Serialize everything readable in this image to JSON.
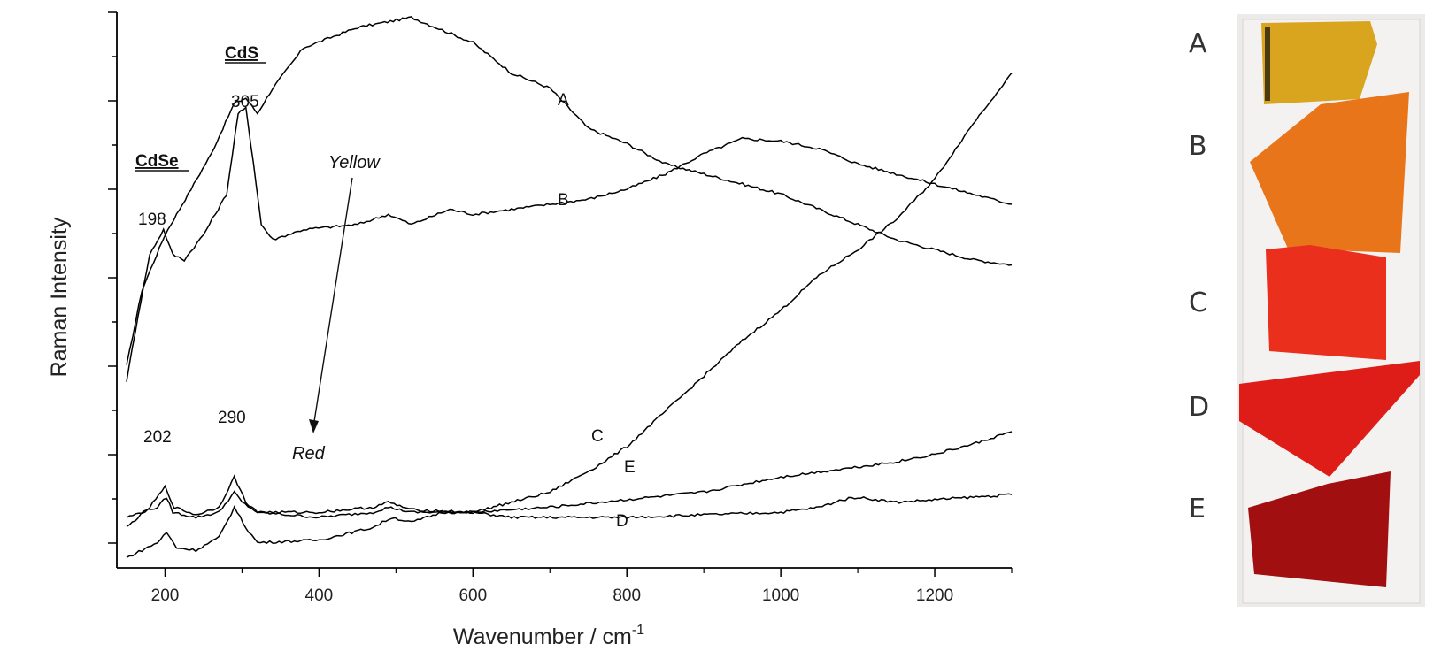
{
  "chart_data": {
    "type": "line",
    "xlabel": "Wavenumber / cm",
    "xlabel_sup": "-1",
    "ylabel": "Raman Intensity",
    "xlim": [
      150,
      1300
    ],
    "ylim": [
      0,
      110
    ],
    "x_ticks": [
      200,
      400,
      600,
      800,
      1000,
      1200
    ],
    "x_tick_labels": [
      "200",
      "400",
      "600",
      "800",
      "1000",
      "1200"
    ],
    "y_tick_labels_shown": false,
    "series": [
      {
        "name": "A",
        "color": "#000000",
        "points": [
          [
            150,
            40
          ],
          [
            170,
            55
          ],
          [
            200,
            66
          ],
          [
            230,
            74
          ],
          [
            260,
            82
          ],
          [
            290,
            92
          ],
          [
            305,
            93
          ],
          [
            320,
            90
          ],
          [
            340,
            95
          ],
          [
            380,
            103
          ],
          [
            450,
            107
          ],
          [
            520,
            109
          ],
          [
            600,
            104
          ],
          [
            650,
            98
          ],
          [
            700,
            95
          ],
          [
            750,
            87
          ],
          [
            800,
            84
          ],
          [
            850,
            80
          ],
          [
            900,
            78
          ],
          [
            950,
            76
          ],
          [
            1000,
            74
          ],
          [
            1050,
            71
          ],
          [
            1100,
            68
          ],
          [
            1150,
            65
          ],
          [
            1200,
            63
          ],
          [
            1250,
            61
          ],
          [
            1300,
            60
          ]
        ]
      },
      {
        "name": "B",
        "color": "#000000",
        "points": [
          [
            150,
            37
          ],
          [
            165,
            50
          ],
          [
            180,
            62
          ],
          [
            198,
            67
          ],
          [
            210,
            62
          ],
          [
            225,
            61
          ],
          [
            250,
            66
          ],
          [
            280,
            74
          ],
          [
            295,
            90
          ],
          [
            305,
            91
          ],
          [
            315,
            80
          ],
          [
            325,
            68
          ],
          [
            340,
            65
          ],
          [
            380,
            67
          ],
          [
            450,
            68
          ],
          [
            490,
            70
          ],
          [
            520,
            68
          ],
          [
            570,
            71
          ],
          [
            600,
            70
          ],
          [
            650,
            71
          ],
          [
            700,
            72
          ],
          [
            750,
            73
          ],
          [
            800,
            75
          ],
          [
            850,
            78
          ],
          [
            900,
            82
          ],
          [
            950,
            85
          ],
          [
            1000,
            84.5
          ],
          [
            1050,
            83
          ],
          [
            1100,
            80
          ],
          [
            1150,
            78
          ],
          [
            1200,
            76
          ],
          [
            1250,
            74
          ],
          [
            1300,
            72
          ]
        ]
      },
      {
        "name": "C",
        "color": "#000000",
        "points": [
          [
            150,
            10
          ],
          [
            190,
            12
          ],
          [
            202,
            14
          ],
          [
            210,
            11
          ],
          [
            240,
            10
          ],
          [
            270,
            11
          ],
          [
            290,
            15
          ],
          [
            300,
            13
          ],
          [
            320,
            11
          ],
          [
            400,
            10
          ],
          [
            470,
            11
          ],
          [
            490,
            12
          ],
          [
            520,
            11
          ],
          [
            600,
            11
          ],
          [
            650,
            13
          ],
          [
            700,
            15
          ],
          [
            760,
            20
          ],
          [
            800,
            24
          ],
          [
            850,
            31
          ],
          [
            900,
            38
          ],
          [
            950,
            45
          ],
          [
            1000,
            51
          ],
          [
            1050,
            58
          ],
          [
            1100,
            63
          ],
          [
            1150,
            69
          ],
          [
            1200,
            77
          ],
          [
            1250,
            88
          ],
          [
            1300,
            98
          ]
        ]
      },
      {
        "name": "D",
        "color": "#000000",
        "points": [
          [
            150,
            2
          ],
          [
            190,
            5
          ],
          [
            202,
            7
          ],
          [
            215,
            4
          ],
          [
            240,
            3.5
          ],
          [
            270,
            6
          ],
          [
            290,
            12
          ],
          [
            305,
            8
          ],
          [
            320,
            5
          ],
          [
            400,
            5.5
          ],
          [
            470,
            8
          ],
          [
            495,
            10
          ],
          [
            520,
            9
          ],
          [
            560,
            11
          ],
          [
            600,
            11
          ],
          [
            650,
            10
          ],
          [
            700,
            10
          ],
          [
            800,
            10
          ],
          [
            900,
            10.5
          ],
          [
            1000,
            11
          ],
          [
            1050,
            12
          ],
          [
            1080,
            13.5
          ],
          [
            1100,
            14
          ],
          [
            1150,
            13
          ],
          [
            1200,
            13.5
          ],
          [
            1250,
            14
          ],
          [
            1300,
            14.5
          ]
        ]
      },
      {
        "name": "E",
        "color": "#000000",
        "points": [
          [
            150,
            8
          ],
          [
            180,
            12
          ],
          [
            200,
            16
          ],
          [
            212,
            12
          ],
          [
            240,
            10.5
          ],
          [
            270,
            12
          ],
          [
            290,
            18
          ],
          [
            305,
            13
          ],
          [
            320,
            11
          ],
          [
            400,
            11
          ],
          [
            470,
            12
          ],
          [
            490,
            13
          ],
          [
            520,
            11.5
          ],
          [
            600,
            11
          ],
          [
            700,
            12
          ],
          [
            800,
            13.5
          ],
          [
            900,
            15
          ],
          [
            1000,
            18
          ],
          [
            1100,
            20
          ],
          [
            1150,
            21
          ],
          [
            1200,
            22.5
          ],
          [
            1250,
            24.5
          ],
          [
            1300,
            27
          ]
        ]
      }
    ],
    "annotations": {
      "cds": "CdS",
      "cdse": "CdSe",
      "peak_305": "305",
      "peak_198": "198",
      "peak_202": "202",
      "peak_290": "290",
      "yellow": "Yellow",
      "red": "Red",
      "label_A": "A",
      "label_B": "B",
      "label_C": "C",
      "label_D": "D",
      "label_E": "E"
    }
  },
  "photo": {
    "labels": [
      "A",
      "B",
      "C",
      "D",
      "E"
    ],
    "glass_colors": [
      "#d9a51f",
      "#e9751a",
      "#ea2f1d",
      "#de1d18",
      "#a20f10"
    ]
  }
}
